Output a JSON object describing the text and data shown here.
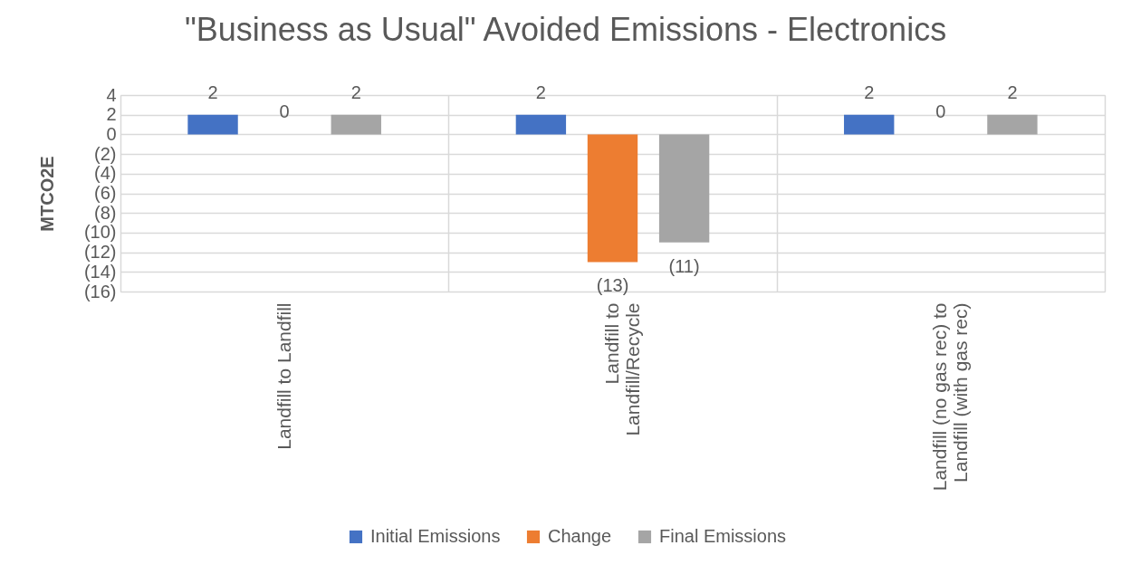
{
  "chart_data": {
    "type": "bar",
    "title": "\"Business as Usual\" Avoided Emissions - Electronics",
    "ylabel": "MTCO2E",
    "categories": [
      "Landfill to Landfill",
      "Landfill to Landfill/Recycle",
      "Landfill (no gas rec) to Landfill (with gas rec)"
    ],
    "series": [
      {
        "name": "Initial Emissions",
        "color": "#4472c4",
        "values": [
          2,
          2,
          2
        ],
        "value_labels": [
          "2",
          "2",
          "2"
        ]
      },
      {
        "name": "Change",
        "color": "#ed7d31",
        "values": [
          0,
          -13,
          0
        ],
        "value_labels": [
          "0",
          "(13)",
          "0"
        ]
      },
      {
        "name": "Final Emissions",
        "color": "#a5a5a5",
        "values": [
          2,
          -11,
          2
        ],
        "value_labels": [
          "2",
          "(11)",
          "2"
        ]
      }
    ],
    "ylim": [
      -16,
      4
    ],
    "yticks": [
      4,
      2,
      0,
      {
        "value": -2,
        "label": "(2)"
      },
      {
        "value": -4,
        "label": "(4)"
      },
      {
        "value": -6,
        "label": "(6)"
      },
      {
        "value": -8,
        "label": "(8)"
      },
      {
        "value": -10,
        "label": "(10)"
      },
      {
        "value": -12,
        "label": "(12)"
      },
      {
        "value": -14,
        "label": "(14)"
      },
      {
        "value": -16,
        "label": "(16)"
      }
    ],
    "grid": true,
    "legend": "bottom"
  }
}
